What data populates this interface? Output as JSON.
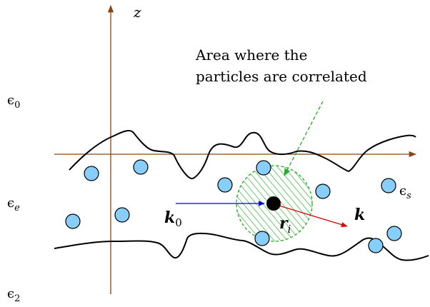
{
  "labels": {
    "z_axis": "z",
    "eps0_main": "ϵ",
    "eps0_sub": "0",
    "epse_main": "ϵ",
    "epse_sub": "e",
    "eps2_main": "ϵ",
    "eps2_sub": "2",
    "epss_main": "ϵ",
    "epss_sub": "s",
    "k0_main": "k",
    "k0_sub": "0",
    "ri_main": "r",
    "ri_sub": "i",
    "k_label": "k",
    "annotation_line1": "Area where the",
    "annotation_line2": "particles are correlated"
  },
  "colors": {
    "axis": "#8b4513",
    "particle_fill": "#87cefa",
    "correlated_area": "#22aa22",
    "incident_arrow": "#0000cc",
    "scattered_arrow": "#dd0000",
    "annotation_arrow": "#22aa22"
  }
}
